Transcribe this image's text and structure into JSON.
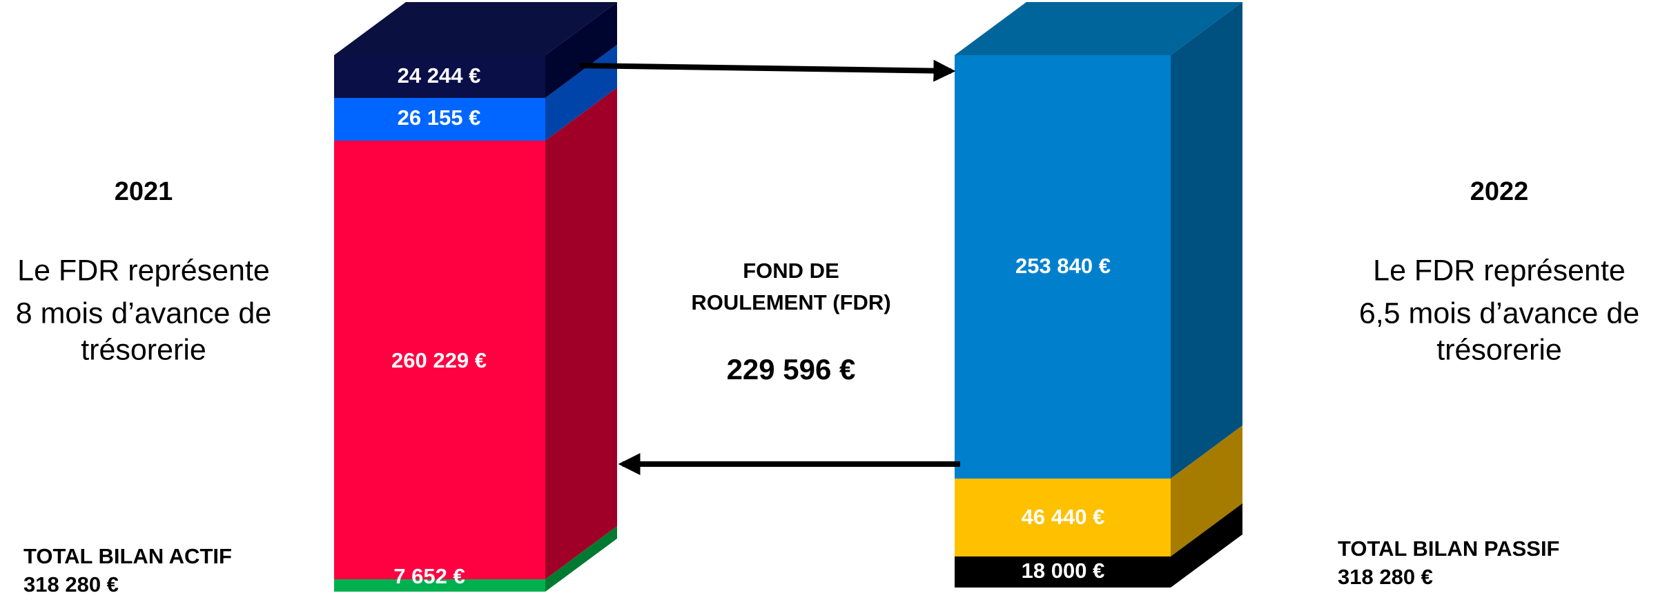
{
  "left": {
    "year": "2021",
    "text": [
      "Le FDR représente",
      "8 mois d’avance de",
      "trésorerie"
    ],
    "total_label": "TOTAL BILAN ACTIF",
    "total": "318 280 €",
    "segments": [
      "24 244 €",
      "26 155 €",
      "260 229 €",
      "7 652 €"
    ]
  },
  "center": {
    "title": [
      "FOND DE",
      "ROULEMENT (FDR)"
    ],
    "value": "229 596 €"
  },
  "right": {
    "year": "2022",
    "text": [
      "Le FDR représente",
      "6,5 mois d’avance de",
      "trésorerie"
    ],
    "total_label": "TOTAL BILAN PASSIF",
    "total": "318 280 €",
    "segments": [
      "253 840 €",
      "46 440 €",
      "18 000 €"
    ]
  }
}
